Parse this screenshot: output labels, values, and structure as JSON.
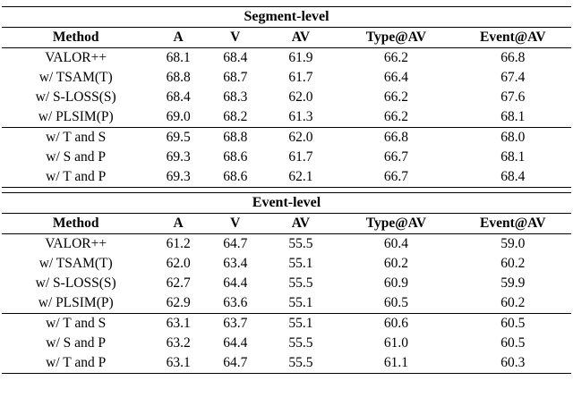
{
  "tables": [
    {
      "title": "Segment-level",
      "columns": [
        "Method",
        "A",
        "V",
        "AV",
        "Type@AV",
        "Event@AV"
      ],
      "rows": [
        [
          "VALOR++",
          "68.1",
          "68.4",
          "61.9",
          "66.2",
          "66.8"
        ],
        [
          "w/ TSAM(T)",
          "68.8",
          "68.7",
          "61.7",
          "66.4",
          "67.4"
        ],
        [
          "w/ S-LOSS(S)",
          "68.4",
          "68.3",
          "62.0",
          "66.2",
          "67.6"
        ],
        [
          "w/ PLSIM(P)",
          "69.0",
          "68.2",
          "61.3",
          "66.2",
          "68.1"
        ],
        [
          "w/ T and S",
          "69.5",
          "68.8",
          "62.0",
          "66.8",
          "68.0"
        ],
        [
          "w/ S and P",
          "69.3",
          "68.6",
          "61.7",
          "66.7",
          "68.1"
        ],
        [
          "w/ T and P",
          "69.3",
          "68.6",
          "62.1",
          "66.7",
          "68.4"
        ]
      ]
    },
    {
      "title": "Event-level",
      "columns": [
        "Method",
        "A",
        "V",
        "AV",
        "Type@AV",
        "Event@AV"
      ],
      "rows": [
        [
          "VALOR++",
          "61.2",
          "64.7",
          "55.5",
          "60.4",
          "59.0"
        ],
        [
          "w/ TSAM(T)",
          "62.0",
          "63.4",
          "55.1",
          "60.2",
          "60.2"
        ],
        [
          "w/ S-LOSS(S)",
          "62.7",
          "64.4",
          "55.5",
          "60.9",
          "59.9"
        ],
        [
          "w/ PLSIM(P)",
          "62.9",
          "63.6",
          "55.1",
          "60.5",
          "60.2"
        ],
        [
          "w/ T and S",
          "63.1",
          "63.7",
          "55.1",
          "60.6",
          "60.5"
        ],
        [
          "w/ S and P",
          "63.2",
          "64.4",
          "55.5",
          "61.0",
          "60.5"
        ],
        [
          "w/ T and P",
          "63.1",
          "64.7",
          "55.5",
          "61.1",
          "60.3"
        ]
      ]
    }
  ]
}
